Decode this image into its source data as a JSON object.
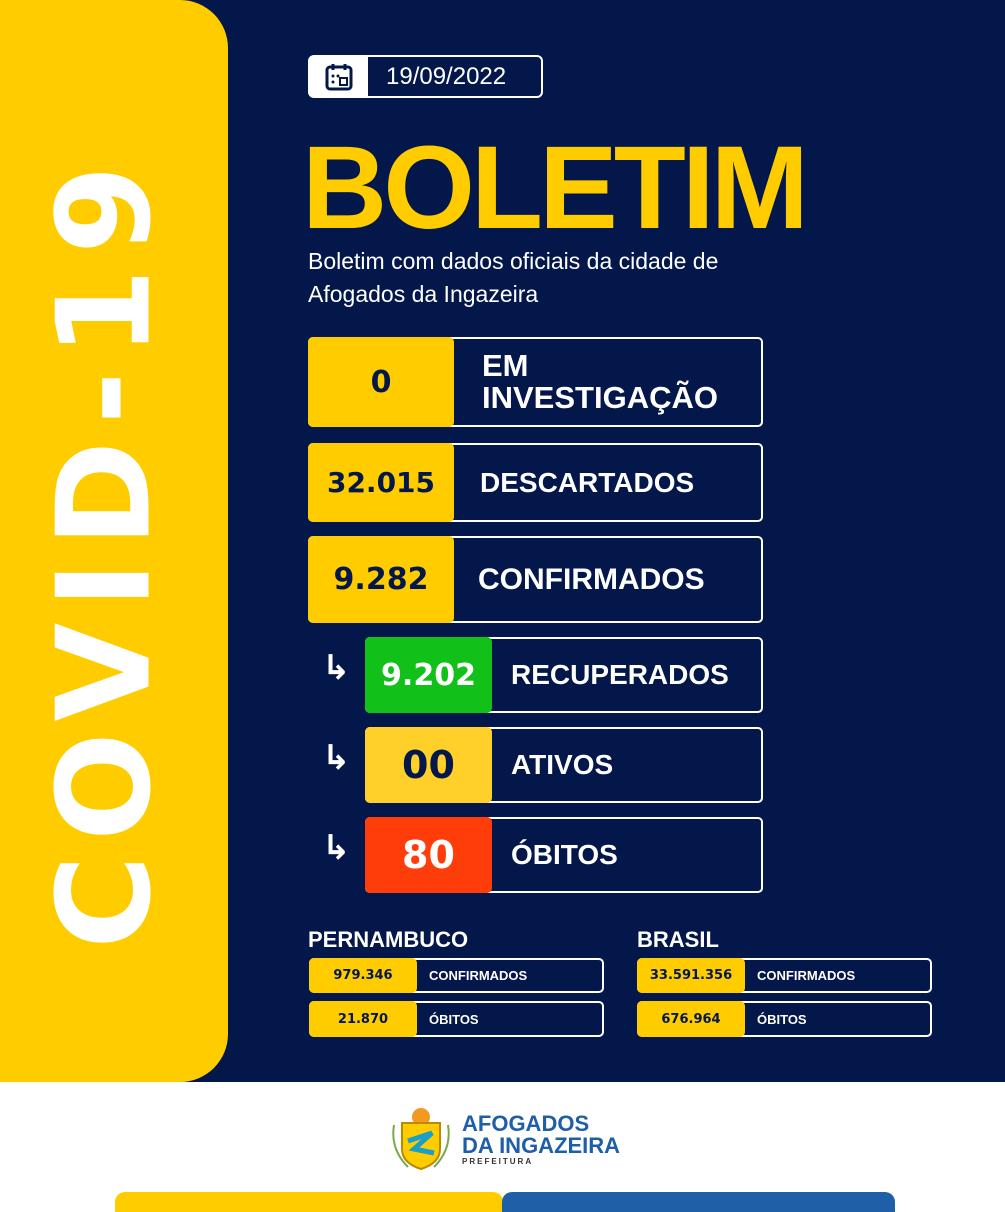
{
  "side_title": "COVID-19",
  "date": "19/09/2022",
  "title": "BOLETIM",
  "subtitle": "Boletim com dados oficiais da cidade de Afogados da Ingazeira",
  "main": [
    {
      "value": "0",
      "label": "EM INVESTIGAÇÃO"
    },
    {
      "value": "32.015",
      "label": "DESCARTADOS"
    },
    {
      "value": "9.282",
      "label": "CONFIRMADOS"
    }
  ],
  "sub": [
    {
      "value": "9.202",
      "label": "RECUPERADOS",
      "color": "#12c01a"
    },
    {
      "value": "00",
      "label": "ATIVOS",
      "color": "#ffd02a"
    },
    {
      "value": "80",
      "label": "ÓBITOS",
      "color": "#ff3d0a"
    }
  ],
  "pe": {
    "name": "PERNAMBUCO",
    "confirmed": "979.346",
    "deaths": "21.870"
  },
  "br": {
    "name": "BRASIL",
    "confirmed": "33.591.356",
    "deaths": "676.964"
  },
  "labels": {
    "confirmed": "CONFIRMADOS",
    "deaths": "ÓBITOS"
  },
  "logo": {
    "line1": "AFOGADOS",
    "line2": "DA INGAZEIRA",
    "line3": "PREFEITURA"
  },
  "colors": {
    "navy": "#03174a",
    "yellow": "#ffcc00",
    "blue": "#1f5fa8"
  }
}
